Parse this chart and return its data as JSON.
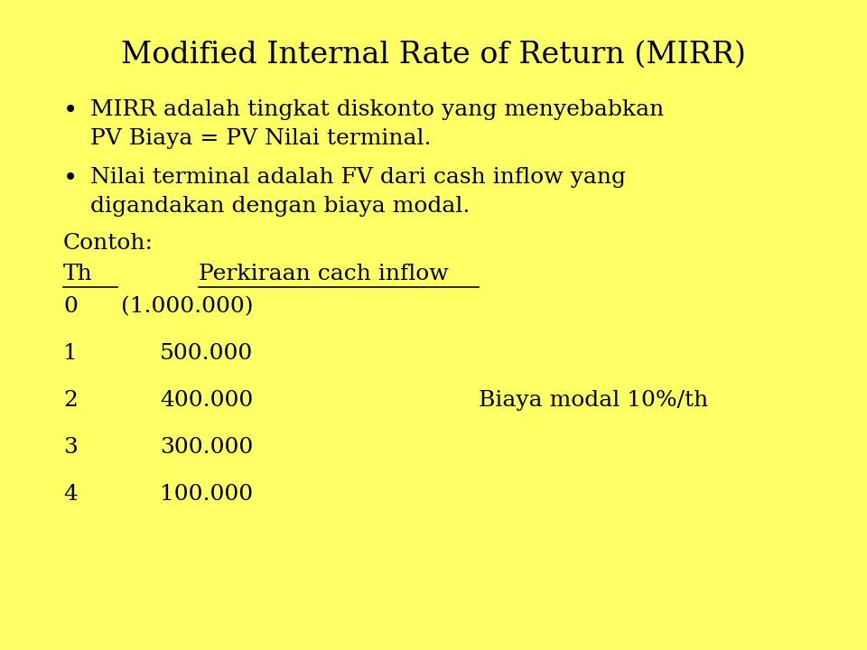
{
  "background_color": "#FFFF66",
  "title": "Modified Internal Rate of Return (MIRR)",
  "title_fontsize": 24,
  "title_font": "serif",
  "bullet1_line1": "MIRR adalah tingkat diskonto yang menyebabkan",
  "bullet1_line2": "PV Biaya = PV Nilai terminal.",
  "bullet2_line1": "Nilai terminal adalah FV dari cash inflow yang",
  "bullet2_line2": "digandakan dengan biaya modal.",
  "contoh_label": "Contoh:",
  "table_header_th": "Th",
  "table_header_perkiraan": "Perkiraan cach inflow",
  "table_rows": [
    [
      "0",
      "(1.000.000)",
      ""
    ],
    [
      "1",
      "500.000",
      ""
    ],
    [
      "2",
      "400.000",
      "Biaya modal 10%/th"
    ],
    [
      "3",
      "300.000",
      ""
    ],
    [
      "4",
      "100.000",
      ""
    ]
  ],
  "text_color": "#000000",
  "body_fontsize": 18,
  "body_font": "serif"
}
